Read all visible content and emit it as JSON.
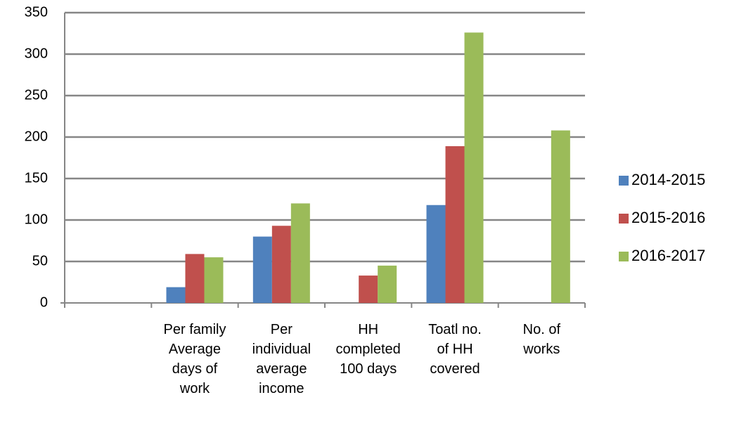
{
  "chart_data": {
    "type": "bar",
    "categories": [
      null,
      "Per family\nAverage\ndays of\nwork",
      "Per\nindividual\naverage\nincome",
      "HH\ncompleted\n100 days",
      "Toatl no.\nof HH\ncovered",
      "No. of\nworks"
    ],
    "series": [
      {
        "name": "2014-2015",
        "color": "#4f81bd",
        "values": [
          null,
          19,
          80,
          null,
          118,
          null
        ]
      },
      {
        "name": "2015-2016",
        "color": "#c0504d",
        "values": [
          null,
          59,
          93,
          33,
          189,
          null
        ]
      },
      {
        "name": "2016-2017",
        "color": "#9bbb59",
        "values": [
          null,
          55,
          120,
          45,
          326,
          208
        ]
      }
    ],
    "ylim": [
      0,
      350
    ],
    "yticks": [
      0,
      50,
      100,
      150,
      200,
      250,
      300,
      350
    ],
    "grid": true,
    "legend": "right"
  }
}
